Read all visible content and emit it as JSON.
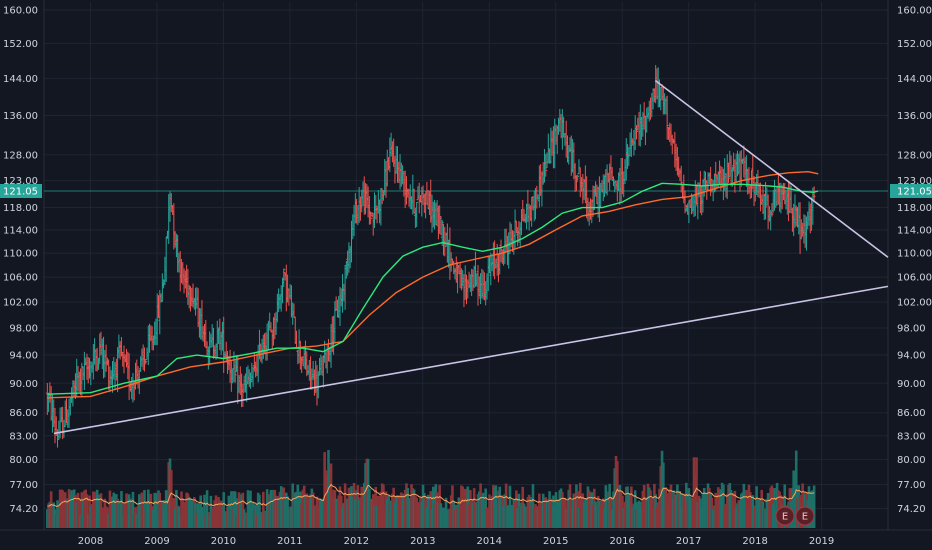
{
  "chart_data": {
    "type": "candlestick",
    "title": "",
    "xlabel": "",
    "ylabel": "",
    "y_axis": {
      "scale": "log",
      "range": [
        72.0,
        162.0
      ],
      "ticks": [
        "160.00",
        "152.00",
        "144.00",
        "136.00",
        "128.00",
        "123.00",
        "118.00",
        "114.00",
        "110.00",
        "106.00",
        "102.00",
        "98.00",
        "94.00",
        "90.00",
        "86.00",
        "83.00",
        "80.00",
        "77.00",
        "74.20"
      ],
      "placement": "both"
    },
    "x_axis": {
      "range": [
        2007.3,
        2020.0
      ],
      "ticks": [
        "2008",
        "2009",
        "2010",
        "2011",
        "2012",
        "2013",
        "2014",
        "2015",
        "2016",
        "2017",
        "2018",
        "2019"
      ]
    },
    "grid": true,
    "current_price": {
      "value": 121.05,
      "label": "121.05",
      "color": "#26a69a"
    },
    "colors": {
      "up": "#26a69a",
      "down": "#ef5350",
      "ma_fast": "#2ee87a",
      "ma_slow": "#ff6a2b",
      "trendline": "#c9c3e6",
      "volume_ma": "#f7a35c"
    },
    "price_path": [
      [
        2007.35,
        88.5
      ],
      [
        2007.5,
        83.0
      ],
      [
        2007.65,
        86.0
      ],
      [
        2007.8,
        90.5
      ],
      [
        2008.0,
        92.5
      ],
      [
        2008.15,
        95.0
      ],
      [
        2008.3,
        91.0
      ],
      [
        2008.45,
        94.0
      ],
      [
        2008.6,
        90.0
      ],
      [
        2008.8,
        93.0
      ],
      [
        2008.95,
        97.0
      ],
      [
        2009.05,
        102.0
      ],
      [
        2009.12,
        108.0
      ],
      [
        2009.2,
        121.0
      ],
      [
        2009.28,
        112.0
      ],
      [
        2009.38,
        106.0
      ],
      [
        2009.52,
        104.0
      ],
      [
        2009.65,
        99.0
      ],
      [
        2009.8,
        95.0
      ],
      [
        2009.95,
        97.0
      ],
      [
        2010.05,
        94.0
      ],
      [
        2010.15,
        91.0
      ],
      [
        2010.3,
        89.0
      ],
      [
        2010.45,
        91.0
      ],
      [
        2010.6,
        96.0
      ],
      [
        2010.75,
        98.0
      ],
      [
        2010.9,
        106.0
      ],
      [
        2011.0,
        102.0
      ],
      [
        2011.1,
        96.0
      ],
      [
        2011.25,
        92.0
      ],
      [
        2011.4,
        90.0
      ],
      [
        2011.55,
        94.0
      ],
      [
        2011.65,
        98.0
      ],
      [
        2011.8,
        104.0
      ],
      [
        2011.9,
        112.0
      ],
      [
        2012.0,
        118.0
      ],
      [
        2012.1,
        120.0
      ],
      [
        2012.25,
        116.0
      ],
      [
        2012.4,
        121.0
      ],
      [
        2012.5,
        128.0
      ],
      [
        2012.6,
        126.0
      ],
      [
        2012.75,
        122.0
      ],
      [
        2012.9,
        118.0
      ],
      [
        2013.0,
        121.0
      ],
      [
        2013.15,
        117.0
      ],
      [
        2013.3,
        114.0
      ],
      [
        2013.45,
        108.0
      ],
      [
        2013.6,
        104.0
      ],
      [
        2013.75,
        106.0
      ],
      [
        2013.9,
        104.0
      ],
      [
        2014.05,
        108.0
      ],
      [
        2014.2,
        110.0
      ],
      [
        2014.35,
        113.0
      ],
      [
        2014.5,
        116.0
      ],
      [
        2014.65,
        118.0
      ],
      [
        2014.8,
        124.0
      ],
      [
        2014.95,
        130.0
      ],
      [
        2015.05,
        135.0
      ],
      [
        2015.2,
        128.0
      ],
      [
        2015.35,
        124.0
      ],
      [
        2015.5,
        118.0
      ],
      [
        2015.65,
        120.0
      ],
      [
        2015.8,
        124.0
      ],
      [
        2015.95,
        122.0
      ],
      [
        2016.05,
        126.0
      ],
      [
        2016.2,
        132.0
      ],
      [
        2016.35,
        135.0
      ],
      [
        2016.5,
        142.0
      ],
      [
        2016.65,
        138.0
      ],
      [
        2016.75,
        130.0
      ],
      [
        2016.85,
        124.0
      ],
      [
        2016.95,
        119.0
      ],
      [
        2017.05,
        118.0
      ],
      [
        2017.2,
        121.0
      ],
      [
        2017.35,
        124.0
      ],
      [
        2017.5,
        122.0
      ],
      [
        2017.65,
        126.0
      ],
      [
        2017.8,
        125.0
      ],
      [
        2017.95,
        123.0
      ],
      [
        2018.05,
        120.0
      ],
      [
        2018.2,
        118.0
      ],
      [
        2018.35,
        120.0
      ],
      [
        2018.5,
        119.0
      ],
      [
        2018.6,
        117.0
      ],
      [
        2018.7,
        113.0
      ],
      [
        2018.8,
        115.0
      ],
      [
        2018.9,
        121.0
      ]
    ],
    "ma_fast": [
      [
        2007.35,
        88.5
      ],
      [
        2008.0,
        88.7
      ],
      [
        2008.5,
        90.0
      ],
      [
        2009.0,
        91.0
      ],
      [
        2009.3,
        93.5
      ],
      [
        2009.6,
        94.0
      ],
      [
        2010.0,
        93.5
      ],
      [
        2010.4,
        94.2
      ],
      [
        2010.8,
        95.0
      ],
      [
        2011.2,
        95.0
      ],
      [
        2011.5,
        94.5
      ],
      [
        2011.8,
        96.0
      ],
      [
        2012.1,
        101.0
      ],
      [
        2012.4,
        106.0
      ],
      [
        2012.7,
        109.5
      ],
      [
        2013.0,
        111.0
      ],
      [
        2013.3,
        111.8
      ],
      [
        2013.6,
        111.0
      ],
      [
        2013.9,
        110.3
      ],
      [
        2014.2,
        111.0
      ],
      [
        2014.5,
        112.5
      ],
      [
        2014.8,
        114.5
      ],
      [
        2015.1,
        117.0
      ],
      [
        2015.4,
        118.0
      ],
      [
        2015.7,
        118.0
      ],
      [
        2016.0,
        119.0
      ],
      [
        2016.3,
        121.0
      ],
      [
        2016.6,
        122.5
      ],
      [
        2016.9,
        122.3
      ],
      [
        2017.2,
        122.0
      ],
      [
        2017.5,
        122.3
      ],
      [
        2017.8,
        122.3
      ],
      [
        2018.1,
        122.1
      ],
      [
        2018.4,
        121.8
      ],
      [
        2018.7,
        121.0
      ],
      [
        2018.88,
        120.8
      ],
      [
        2018.95,
        121.05
      ]
    ],
    "ma_slow": [
      [
        2007.35,
        88.0
      ],
      [
        2008.0,
        88.2
      ],
      [
        2008.5,
        89.5
      ],
      [
        2009.0,
        91.0
      ],
      [
        2009.5,
        92.3
      ],
      [
        2010.0,
        93.0
      ],
      [
        2010.5,
        94.0
      ],
      [
        2011.0,
        95.0
      ],
      [
        2011.4,
        95.3
      ],
      [
        2011.8,
        96.0
      ],
      [
        2012.2,
        100.0
      ],
      [
        2012.6,
        103.5
      ],
      [
        2013.0,
        106.0
      ],
      [
        2013.4,
        108.0
      ],
      [
        2013.8,
        109.0
      ],
      [
        2014.2,
        110.0
      ],
      [
        2014.6,
        111.5
      ],
      [
        2015.0,
        114.0
      ],
      [
        2015.4,
        116.5
      ],
      [
        2015.8,
        117.3
      ],
      [
        2016.2,
        118.5
      ],
      [
        2016.6,
        119.5
      ],
      [
        2017.0,
        120.0
      ],
      [
        2017.4,
        121.5
      ],
      [
        2017.8,
        123.0
      ],
      [
        2018.2,
        124.0
      ],
      [
        2018.5,
        124.5
      ],
      [
        2018.8,
        124.7
      ],
      [
        2018.95,
        124.3
      ]
    ],
    "trendlines": [
      {
        "from": [
          2007.45,
          83.3
        ],
        "to": [
          2020.0,
          104.5
        ]
      },
      {
        "from": [
          2016.5,
          143.5
        ],
        "to": [
          2020.0,
          109.3
        ]
      }
    ],
    "volume": {
      "max": 100,
      "peak_dates": [
        2011.55,
        2011.6,
        2009.2,
        2012.15,
        2017.1,
        2018.6,
        2016.6,
        2015.9
      ],
      "earnings_markers": [
        {
          "x": 2018.45,
          "label": "E"
        },
        {
          "x": 2018.75,
          "label": "E"
        }
      ]
    }
  }
}
